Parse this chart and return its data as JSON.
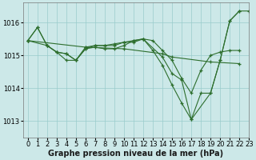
{
  "background_color": "#cce8e8",
  "grid_color": "#99cccc",
  "line_color": "#2d6e2d",
  "xlabel": "Graphe pression niveau de la mer (hPa)",
  "xlim": [
    -0.5,
    23
  ],
  "ylim": [
    1012.5,
    1016.6
  ],
  "yticks": [
    1013,
    1014,
    1015,
    1016
  ],
  "xticks": [
    0,
    1,
    2,
    3,
    4,
    5,
    6,
    7,
    8,
    9,
    10,
    11,
    12,
    13,
    14,
    15,
    16,
    17,
    18,
    19,
    20,
    21,
    22,
    23
  ],
  "series": [
    {
      "x": [
        0,
        1,
        2,
        3,
        4,
        5,
        6,
        7,
        8,
        9,
        10,
        11,
        12,
        13,
        14,
        15,
        16,
        17,
        18,
        19,
        20,
        21,
        22,
        23
      ],
      "y": [
        1015.45,
        1015.85,
        1015.3,
        1015.1,
        1014.85,
        1014.85,
        1015.25,
        1015.3,
        1015.3,
        1015.35,
        1015.4,
        1015.4,
        1015.5,
        1015.15,
        1014.7,
        1014.1,
        1013.55,
        1013.05,
        1013.85,
        1013.85,
        1014.85,
        1016.05,
        1016.35,
        1016.35
      ]
    },
    {
      "x": [
        0,
        1,
        2,
        3,
        4,
        5,
        6,
        7,
        8,
        9,
        10,
        11,
        12,
        13,
        14,
        15,
        16,
        17,
        18,
        19,
        20,
        21,
        22
      ],
      "y": [
        1015.45,
        1015.85,
        1015.3,
        1015.1,
        1015.05,
        1014.85,
        1015.2,
        1015.3,
        1015.3,
        1015.3,
        1015.4,
        1015.45,
        1015.5,
        1015.45,
        1015.15,
        1014.85,
        1014.3,
        1013.85,
        1014.55,
        1015.0,
        1015.1,
        1015.15,
        1015.15
      ]
    },
    {
      "x": [
        0,
        2,
        3,
        4,
        5,
        6,
        7,
        8,
        9,
        10,
        11,
        12,
        14,
        15,
        16,
        17,
        19,
        20,
        21,
        22
      ],
      "y": [
        1015.45,
        1015.3,
        1015.1,
        1015.05,
        1014.85,
        1015.2,
        1015.25,
        1015.2,
        1015.2,
        1015.3,
        1015.45,
        1015.5,
        1014.95,
        1014.45,
        1014.25,
        1013.05,
        1013.85,
        1014.85,
        1016.05,
        1016.35
      ]
    },
    {
      "x": [
        0,
        6,
        10,
        14,
        15,
        19,
        22
      ],
      "y": [
        1015.45,
        1015.25,
        1015.2,
        1015.05,
        1014.95,
        1014.8,
        1014.75
      ]
    }
  ],
  "xlabel_fontsize": 7,
  "tick_fontsize": 6,
  "figsize": [
    3.2,
    2.0
  ],
  "dpi": 100
}
